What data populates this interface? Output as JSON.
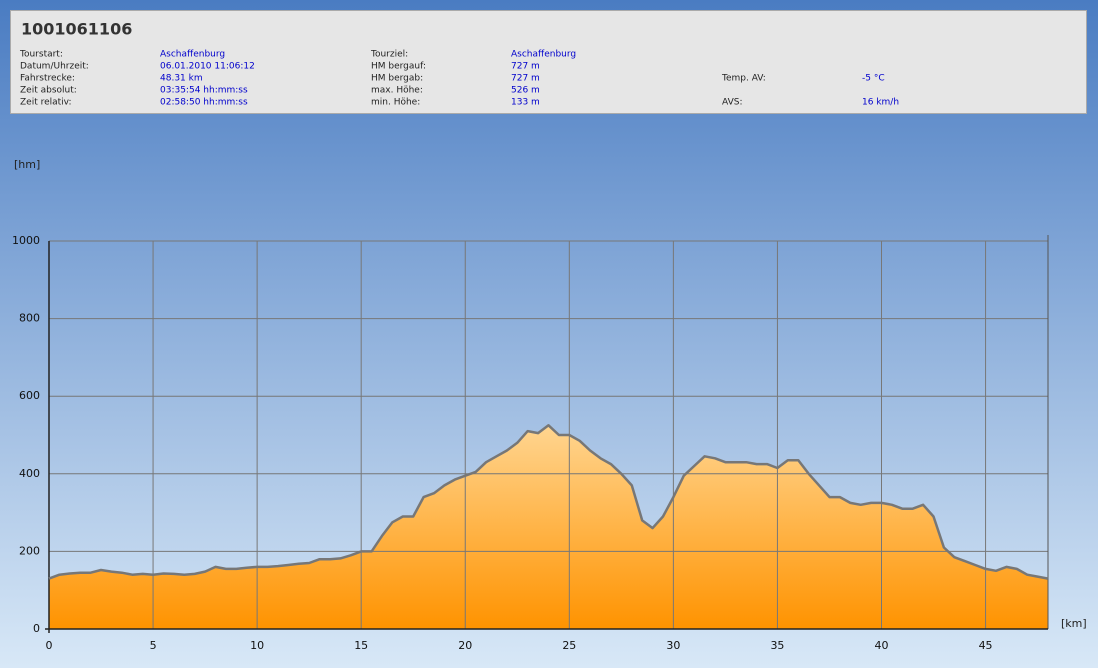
{
  "header": {
    "title": "1001061106",
    "fields": [
      {
        "label": "Tourstart:",
        "value": "Aschaffenburg"
      },
      {
        "label": "Datum/Uhrzeit:",
        "value": "06.01.2010 11:06:12"
      },
      {
        "label": "Fahrstrecke:",
        "value": "48.31 km"
      },
      {
        "label": "Zeit absolut:",
        "value": "03:35:54 hh:mm:ss"
      },
      {
        "label": "Zeit relativ:",
        "value": "02:58:50 hh:mm:ss"
      },
      {
        "label": "Tourziel:",
        "value": "Aschaffenburg"
      },
      {
        "label": "HM bergauf:",
        "value": "727 m"
      },
      {
        "label": "HM bergab:",
        "value": "727 m"
      },
      {
        "label": "max. Höhe:",
        "value": "526 m"
      },
      {
        "label": "min. Höhe:",
        "value": "133 m"
      },
      {
        "label": "Temp. AV:",
        "value": "-5 °C"
      },
      {
        "label": "AVS:",
        "value": "16 km/h"
      }
    ]
  },
  "chart_data": {
    "type": "area",
    "y_label": "[hm]",
    "x_label": "[km]",
    "x": [
      0,
      0.5,
      1,
      1.5,
      2,
      2.5,
      3,
      3.5,
      4,
      4.5,
      5,
      5.5,
      6,
      6.5,
      7,
      7.5,
      8,
      8.5,
      9,
      9.5,
      10,
      10.5,
      11,
      11.5,
      12,
      12.5,
      13,
      13.5,
      14,
      14.5,
      15,
      15.5,
      16,
      16.5,
      17,
      17.5,
      18,
      18.5,
      19,
      19.5,
      20,
      20.5,
      21,
      21.5,
      22,
      22.5,
      23,
      23.5,
      24,
      24.5,
      25,
      25.5,
      26,
      26.5,
      27,
      27.5,
      28,
      28.5,
      29,
      29.5,
      30,
      30.5,
      31,
      31.5,
      32,
      32.5,
      33,
      33.5,
      34,
      34.5,
      35,
      35.5,
      36,
      36.5,
      37,
      37.5,
      38,
      38.5,
      39,
      39.5,
      40,
      40.5,
      41,
      41.5,
      42,
      42.5,
      43,
      43.5,
      44,
      44.5,
      45,
      45.5,
      46,
      46.5,
      47,
      47.5,
      48
    ],
    "values": [
      130,
      140,
      143,
      145,
      145,
      152,
      148,
      145,
      140,
      142,
      140,
      143,
      142,
      140,
      142,
      148,
      160,
      155,
      155,
      158,
      160,
      160,
      162,
      165,
      168,
      170,
      180,
      180,
      182,
      190,
      200,
      200,
      240,
      275,
      290,
      290,
      340,
      350,
      370,
      385,
      395,
      405,
      430,
      445,
      460,
      480,
      510,
      505,
      525,
      500,
      500,
      485,
      460,
      440,
      425,
      400,
      370,
      280,
      260,
      290,
      340,
      395,
      420,
      445,
      440,
      430,
      430,
      430,
      425,
      425,
      415,
      435,
      435,
      400,
      370,
      340,
      340,
      325,
      320,
      325,
      325,
      320,
      310,
      310,
      320,
      290,
      210,
      185,
      175,
      165,
      155,
      150,
      160,
      155,
      140,
      135,
      130
    ],
    "xlim": [
      0,
      48
    ],
    "ylim": [
      0,
      1000
    ],
    "xticks": [
      0,
      5,
      10,
      15,
      20,
      25,
      30,
      35,
      40,
      45
    ],
    "yticks": [
      0,
      200,
      400,
      600,
      800,
      1000
    ],
    "grid": true,
    "line_color": "#777777"
  }
}
